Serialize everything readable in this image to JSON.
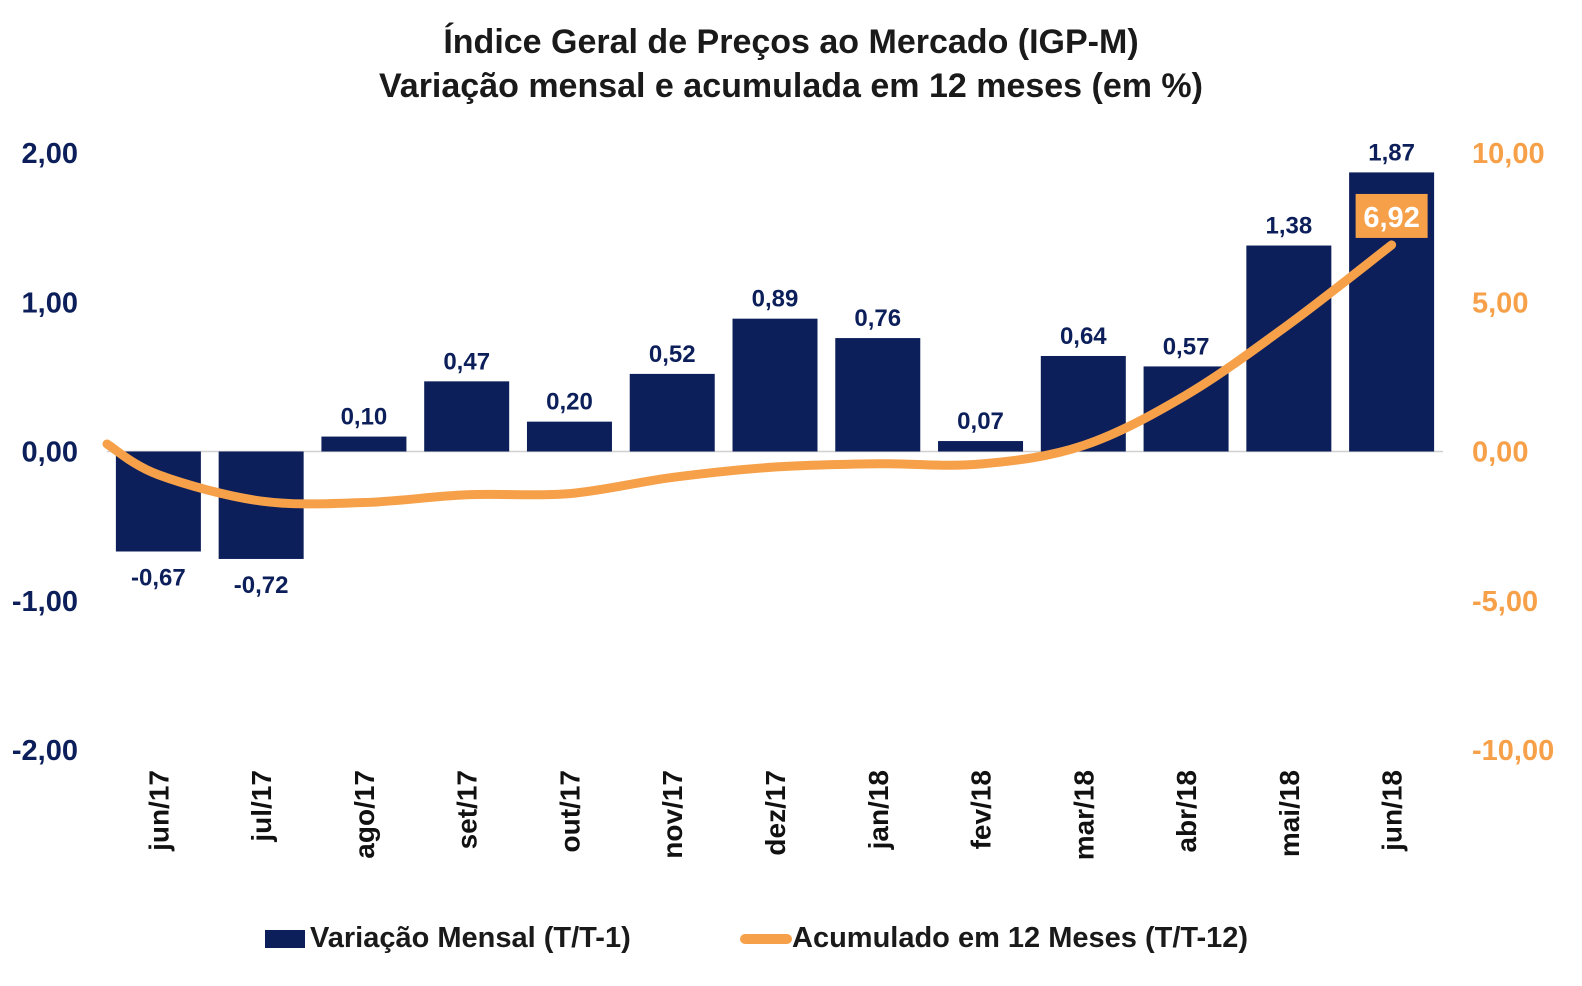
{
  "colors": {
    "bar": "#0c1f5a",
    "line": "#f6a14a",
    "left_axis": "#0c1f5a",
    "right_axis": "#f6a14a",
    "text": "#1a1a1a"
  },
  "chart_data": {
    "type": "bar",
    "title": "Índice Geral de Preços ao Mercado (IGP-M)",
    "subtitle": "Variação mensal e acumulada em 12 meses (em %)",
    "categories": [
      "jun/17",
      "jul/17",
      "ago/17",
      "set/17",
      "out/17",
      "nov/17",
      "dez/17",
      "jan/18",
      "fev/18",
      "mar/18",
      "abr/18",
      "mai/18",
      "jun/18"
    ],
    "series": [
      {
        "name": "Variação Mensal (T/T-1)",
        "type": "bar",
        "axis": "left",
        "values": [
          -0.67,
          -0.72,
          0.1,
          0.47,
          0.2,
          0.52,
          0.89,
          0.76,
          0.07,
          0.64,
          0.57,
          1.38,
          1.87
        ],
        "labels": [
          "-0,67",
          "-0,72",
          "0,10",
          "0,47",
          "0,20",
          "0,52",
          "0,89",
          "0,76",
          "0,07",
          "0,64",
          "0,57",
          "1,38",
          "1,87"
        ]
      },
      {
        "name": "Acumulado em 12 Meses (T/T-12)",
        "type": "line",
        "axis": "right",
        "values": [
          -0.78,
          -1.66,
          -1.71,
          -1.45,
          -1.41,
          -0.87,
          -0.52,
          -0.41,
          -0.42,
          0.2,
          1.89,
          4.26,
          6.92
        ],
        "labels": [
          "",
          "",
          "",
          "",
          "",
          "",
          "",
          "",
          "",
          "",
          "",
          "",
          "6,92"
        ]
      }
    ],
    "left_axis": {
      "min": -2,
      "max": 2,
      "ticks": [
        "2,00",
        "1,00",
        "0,00",
        "-1,00",
        "-2,00"
      ]
    },
    "right_axis": {
      "min": -10,
      "max": 10,
      "ticks": [
        "10,00",
        "5,00",
        "0,00",
        "-5,00",
        "-10,00"
      ]
    },
    "grid": false,
    "legend_position": "bottom"
  },
  "legend": {
    "bar_label": "Variação Mensal (T/T-1)",
    "line_label": "Acumulado em 12 Meses (T/T-12)"
  }
}
